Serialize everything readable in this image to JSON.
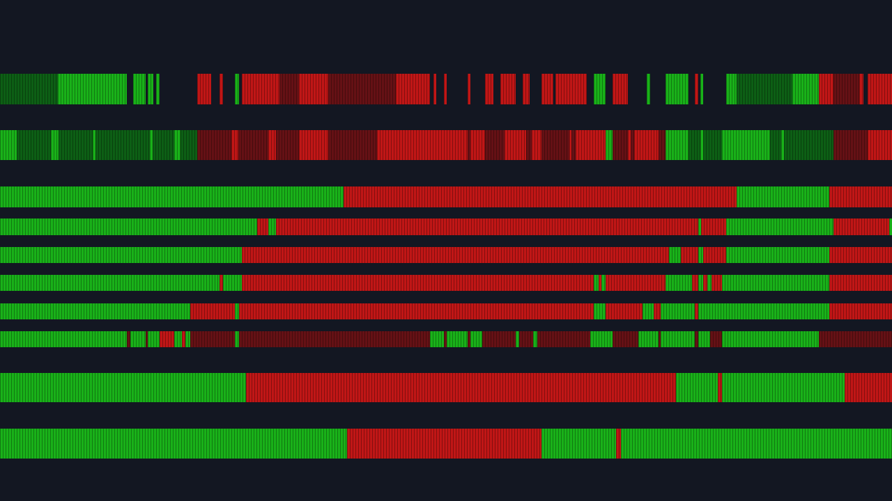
{
  "colors": {
    "background": "#131722",
    "bull": "#19b119",
    "bull_weak": "#0d5f15",
    "bear": "#c01616",
    "bear_weak": "#651115"
  },
  "rows": [
    {
      "id": "trend-row-1",
      "segments": [
        [
          "bull_weak",
          0,
          6.5
        ],
        [
          "bull",
          6.5,
          14.2
        ],
        [
          "bull",
          14.9,
          16.3
        ],
        [
          "bull",
          16.6,
          17.2
        ],
        [
          "bull",
          17.5,
          17.9
        ],
        [
          "bear",
          22.1,
          23.7
        ],
        [
          "bear",
          24.6,
          25.0
        ],
        [
          "bull",
          26.3,
          26.8
        ],
        [
          "bear",
          27.1,
          31.3
        ],
        [
          "bear_weak",
          31.3,
          33.5
        ],
        [
          "bear",
          33.5,
          36.8
        ],
        [
          "bear_weak",
          36.8,
          44.4
        ],
        [
          "bear",
          44.4,
          48.2
        ],
        [
          "bear",
          48.6,
          48.9
        ],
        [
          "bear",
          49.8,
          50.1
        ],
        [
          "bear",
          52.4,
          52.7
        ],
        [
          "bear",
          54.4,
          55.3
        ],
        [
          "bear",
          56.1,
          57.8
        ],
        [
          "bear",
          58.6,
          59.4
        ],
        [
          "bear",
          60.7,
          62.0
        ],
        [
          "bear",
          62.3,
          65.8
        ],
        [
          "bull",
          66.6,
          67.9
        ],
        [
          "bear",
          68.7,
          70.4
        ],
        [
          "bull",
          72.5,
          72.9
        ],
        [
          "bull",
          74.6,
          77.2
        ],
        [
          "bear",
          77.9,
          78.3
        ],
        [
          "bull",
          78.5,
          78.8
        ],
        [
          "bull",
          81.4,
          82.6
        ],
        [
          "bull_weak",
          82.6,
          88.8
        ],
        [
          "bull",
          88.8,
          91.8
        ],
        [
          "bear",
          91.8,
          93.4
        ],
        [
          "bear_weak",
          93.4,
          96.3
        ],
        [
          "bear",
          96.3,
          96.8
        ],
        [
          "bear",
          97.3,
          100
        ]
      ]
    },
    {
      "id": "trend-row-2",
      "segments": [
        [
          "bull",
          0,
          1.9
        ],
        [
          "bull_weak",
          1.9,
          5.7
        ],
        [
          "bull",
          5.7,
          6.6
        ],
        [
          "bull_weak",
          6.6,
          10.4
        ],
        [
          "bull",
          10.4,
          10.7
        ],
        [
          "bull_weak",
          10.7,
          16.8
        ],
        [
          "bull",
          16.8,
          17.1
        ],
        [
          "bull_weak",
          17.1,
          19.5
        ],
        [
          "bull",
          19.5,
          20.2
        ],
        [
          "bull_weak",
          20.2,
          22.1
        ],
        [
          "bear_weak",
          22.1,
          25.9
        ],
        [
          "bear",
          25.9,
          26.7
        ],
        [
          "bear_weak",
          26.7,
          30.1
        ],
        [
          "bear",
          30.1,
          30.9
        ],
        [
          "bear_weak",
          30.9,
          33.5
        ],
        [
          "bear",
          33.5,
          36.8
        ],
        [
          "bear_weak",
          36.8,
          42.3
        ],
        [
          "bear",
          42.3,
          52.4
        ],
        [
          "bear_weak",
          52.4,
          52.7
        ],
        [
          "bear",
          52.7,
          54.4
        ],
        [
          "bear_weak",
          54.4,
          56.6
        ],
        [
          "bear",
          56.6,
          59.0
        ],
        [
          "bear_weak",
          59.0,
          59.6
        ],
        [
          "bear",
          59.6,
          60.7
        ],
        [
          "bear_weak",
          60.7,
          63.8
        ],
        [
          "bear",
          63.8,
          64.1
        ],
        [
          "bear_weak",
          64.1,
          64.5
        ],
        [
          "bear",
          64.5,
          67.9
        ],
        [
          "bull",
          67.9,
          68.7
        ],
        [
          "bear_weak",
          68.7,
          70.4
        ],
        [
          "bear",
          70.4,
          70.7
        ],
        [
          "bear_weak",
          70.7,
          71.1
        ],
        [
          "bear",
          71.1,
          73.8
        ],
        [
          "bear_weak",
          73.8,
          74.6
        ],
        [
          "bull",
          74.6,
          77.2
        ],
        [
          "bull_weak",
          77.2,
          78.5
        ],
        [
          "bull",
          78.5,
          78.8
        ],
        [
          "bull_weak",
          78.8,
          80.9
        ],
        [
          "bull",
          80.9,
          86.3
        ],
        [
          "bull_weak",
          86.3,
          87.6
        ],
        [
          "bull",
          87.6,
          87.9
        ],
        [
          "bull_weak",
          87.9,
          93.4
        ],
        [
          "bear_weak",
          93.4,
          97.3
        ],
        [
          "bear",
          97.3,
          100
        ]
      ]
    },
    {
      "id": "trend-row-3",
      "segments": [
        [
          "bull",
          0,
          38.5
        ],
        [
          "bear",
          38.5,
          82.6
        ],
        [
          "bull",
          82.6,
          93.0
        ],
        [
          "bear",
          93.0,
          100
        ]
      ]
    },
    {
      "id": "trend-row-4",
      "segments": [
        [
          "bull",
          0,
          28.8
        ],
        [
          "bear",
          28.8,
          30.1
        ],
        [
          "bull",
          30.1,
          30.9
        ],
        [
          "bear",
          30.9,
          78.3
        ],
        [
          "bull",
          78.3,
          78.6
        ],
        [
          "bear",
          78.6,
          81.4
        ],
        [
          "bull",
          81.4,
          93.4
        ],
        [
          "bear",
          93.4,
          99.7
        ],
        [
          "bull",
          99.7,
          100
        ]
      ]
    },
    {
      "id": "trend-row-5",
      "segments": [
        [
          "bull",
          0,
          27.1
        ],
        [
          "bear",
          27.1,
          75.0
        ],
        [
          "bull",
          75.0,
          76.3
        ],
        [
          "bear",
          76.3,
          78.3
        ],
        [
          "bull",
          78.3,
          78.8
        ],
        [
          "bear",
          78.8,
          81.4
        ],
        [
          "bull",
          81.4,
          93.0
        ],
        [
          "bear",
          93.0,
          100
        ]
      ]
    },
    {
      "id": "trend-row-6",
      "segments": [
        [
          "bull",
          0,
          24.6
        ],
        [
          "bear",
          24.6,
          25.0
        ],
        [
          "bull",
          25.0,
          27.1
        ],
        [
          "bear",
          27.1,
          66.6
        ],
        [
          "bull",
          66.6,
          67.1
        ],
        [
          "bear",
          67.1,
          67.4
        ],
        [
          "bull",
          67.4,
          67.9
        ],
        [
          "bear",
          67.9,
          74.6
        ],
        [
          "bull",
          74.6,
          77.6
        ],
        [
          "bear",
          77.6,
          78.3
        ],
        [
          "bull",
          78.3,
          78.8
        ],
        [
          "bear",
          78.8,
          79.3
        ],
        [
          "bull",
          79.3,
          79.8
        ],
        [
          "bear",
          79.8,
          80.9
        ],
        [
          "bull",
          80.9,
          93.0
        ],
        [
          "bear",
          93.0,
          100
        ]
      ]
    },
    {
      "id": "trend-row-7",
      "segments": [
        [
          "bull",
          0,
          21.3
        ],
        [
          "bear",
          21.3,
          26.3
        ],
        [
          "bull",
          26.3,
          26.8
        ],
        [
          "bear",
          26.8,
          66.6
        ],
        [
          "bull",
          66.6,
          67.9
        ],
        [
          "bear",
          67.9,
          72.0
        ],
        [
          "bull",
          72.0,
          73.3
        ],
        [
          "bear",
          73.3,
          74.1
        ],
        [
          "bull",
          74.1,
          77.9
        ],
        [
          "bear",
          77.9,
          78.3
        ],
        [
          "bull",
          78.3,
          93.0
        ],
        [
          "bear",
          93.0,
          100
        ]
      ]
    },
    {
      "id": "trend-row-8",
      "segments": [
        [
          "bull",
          0,
          14.2
        ],
        [
          "bear_weak",
          14.2,
          14.6
        ],
        [
          "bull",
          14.6,
          16.3
        ],
        [
          "bear_weak",
          16.3,
          16.6
        ],
        [
          "bull",
          16.6,
          17.9
        ],
        [
          "bear",
          17.9,
          19.5
        ],
        [
          "bull",
          19.5,
          20.4
        ],
        [
          "bear",
          20.4,
          20.8
        ],
        [
          "bull",
          20.8,
          21.3
        ],
        [
          "bear_weak",
          21.3,
          26.3
        ],
        [
          "bull",
          26.3,
          26.8
        ],
        [
          "bear_weak",
          26.8,
          48.2
        ],
        [
          "bull",
          48.2,
          49.8
        ],
        [
          "bear_weak",
          49.8,
          50.1
        ],
        [
          "bull",
          50.1,
          52.4
        ],
        [
          "bear_weak",
          52.4,
          52.7
        ],
        [
          "bull",
          52.7,
          54.1
        ],
        [
          "bear_weak",
          54.1,
          57.8
        ],
        [
          "bull",
          57.8,
          58.2
        ],
        [
          "bear_weak",
          58.2,
          59.8
        ],
        [
          "bull",
          59.8,
          60.2
        ],
        [
          "bear_weak",
          60.2,
          66.2
        ],
        [
          "bull",
          66.2,
          68.7
        ],
        [
          "bear_weak",
          68.7,
          71.6
        ],
        [
          "bull",
          71.6,
          73.8
        ],
        [
          "bear_weak",
          73.8,
          74.1
        ],
        [
          "bull",
          74.1,
          77.9
        ],
        [
          "bear_weak",
          77.9,
          78.3
        ],
        [
          "bull",
          78.3,
          79.6
        ],
        [
          "bear_weak",
          79.6,
          80.9
        ],
        [
          "bull",
          80.9,
          91.8
        ],
        [
          "bear_weak",
          91.8,
          100
        ]
      ]
    },
    {
      "id": "trend-row-9",
      "segments": [
        [
          "bull",
          0,
          27.6
        ],
        [
          "bear",
          27.6,
          75.8
        ],
        [
          "bull",
          75.8,
          80.5
        ],
        [
          "bear",
          80.5,
          80.9
        ],
        [
          "bull",
          80.9,
          94.7
        ],
        [
          "bear",
          94.7,
          100
        ]
      ]
    },
    {
      "id": "trend-row-10",
      "segments": [
        [
          "bull",
          0,
          38.9
        ],
        [
          "bear",
          38.9,
          60.7
        ],
        [
          "bull",
          60.7,
          69.1
        ],
        [
          "bear",
          69.1,
          69.6
        ],
        [
          "bull",
          69.6,
          100
        ]
      ]
    }
  ]
}
